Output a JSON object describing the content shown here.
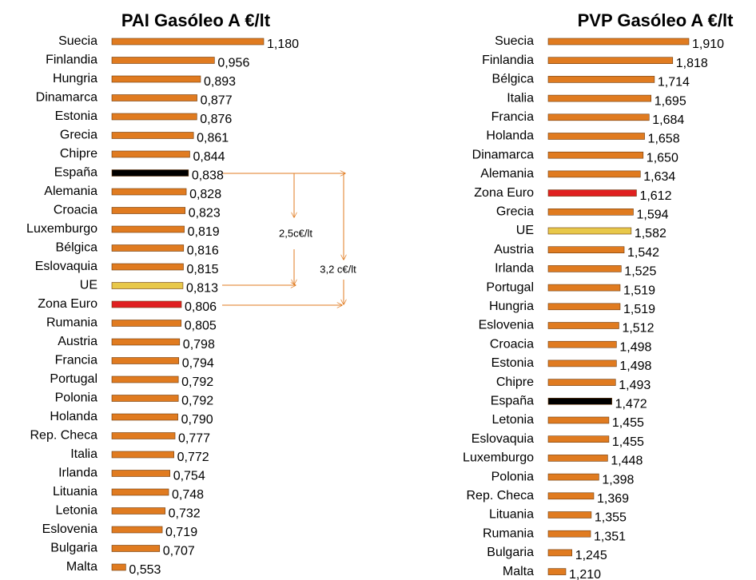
{
  "chart_data": [
    {
      "type": "bar",
      "orientation": "horizontal",
      "title": "PAI Gasóleo A €/lt",
      "categories": [
        "Suecia",
        "Finlandia",
        "Hungria",
        "Dinamarca",
        "Estonia",
        "Grecia",
        "Chipre",
        "España",
        "Alemania",
        "Croacia",
        "Luxemburgo",
        "Bélgica",
        "Eslovaquia",
        "UE",
        "Zona Euro",
        "Rumania",
        "Austria",
        "Francia",
        "Portugal",
        "Polonia",
        "Holanda",
        "Rep. Checa",
        "Italia",
        "Irlanda",
        "Lituania",
        "Letonia",
        "Eslovenia",
        "Bulgaria",
        "Malta"
      ],
      "values": [
        1.18,
        0.956,
        0.893,
        0.877,
        0.876,
        0.861,
        0.844,
        0.838,
        0.828,
        0.823,
        0.819,
        0.816,
        0.815,
        0.813,
        0.806,
        0.805,
        0.798,
        0.794,
        0.792,
        0.792,
        0.79,
        0.777,
        0.772,
        0.754,
        0.748,
        0.732,
        0.719,
        0.707,
        0.553
      ],
      "value_labels": [
        "1,180",
        "0,956",
        "0,893",
        "0,877",
        "0,876",
        "0,861",
        "0,844",
        "0,838",
        "0,828",
        "0,823",
        "0,819",
        "0,816",
        "0,815",
        "0,813",
        "0,806",
        "0,805",
        "0,798",
        "0,794",
        "0,792",
        "0,792",
        "0,790",
        "0,777",
        "0,772",
        "0,754",
        "0,748",
        "0,732",
        "0,719",
        "0,707",
        "0,553"
      ],
      "colors": [
        "#e07b20",
        "#e07b20",
        "#e07b20",
        "#e07b20",
        "#e07b20",
        "#e07b20",
        "#e07b20",
        "#000000",
        "#e07b20",
        "#e07b20",
        "#e07b20",
        "#e07b20",
        "#e07b20",
        "#e8c84a",
        "#e02020",
        "#e07b20",
        "#e07b20",
        "#e07b20",
        "#e07b20",
        "#e07b20",
        "#e07b20",
        "#e07b20",
        "#e07b20",
        "#e07b20",
        "#e07b20",
        "#e07b20",
        "#e07b20",
        "#e07b20",
        "#e07b20"
      ],
      "xlim": [
        0.49,
        1.18
      ],
      "annotations": [
        "2,5c€/lt",
        "3,2 c€/lt"
      ]
    },
    {
      "type": "bar",
      "orientation": "horizontal",
      "title": "PVP Gasóleo A €/lt",
      "categories": [
        "Suecia",
        "Finlandia",
        "Bélgica",
        "Italia",
        "Francia",
        "Holanda",
        "Dinamarca",
        "Alemania",
        "Zona Euro",
        "Grecia",
        "UE",
        "Austria",
        "Irlanda",
        "Portugal",
        "Hungria",
        "Eslovenia",
        "Croacia",
        "Estonia",
        "Chipre",
        "España",
        "Letonia",
        "Eslovaquia",
        "Luxemburgo",
        "Polonia",
        "Rep. Checa",
        "Lituania",
        "Rumania",
        "Bulgaria",
        "Malta"
      ],
      "values": [
        1.91,
        1.818,
        1.714,
        1.695,
        1.684,
        1.658,
        1.65,
        1.634,
        1.612,
        1.594,
        1.582,
        1.542,
        1.525,
        1.519,
        1.519,
        1.512,
        1.498,
        1.498,
        1.493,
        1.472,
        1.455,
        1.455,
        1.448,
        1.398,
        1.369,
        1.355,
        1.351,
        1.245,
        1.21
      ],
      "value_labels": [
        "1,910",
        "1,818",
        "1,714",
        "1,695",
        "1,684",
        "1,658",
        "1,650",
        "1,634",
        "1,612",
        "1,594",
        "1,582",
        "1,542",
        "1,525",
        "1,519",
        "1,519",
        "1,512",
        "1,498",
        "1,498",
        "1,493",
        "1,472",
        "1,455",
        "1,455",
        "1,448",
        "1,398",
        "1,369",
        "1,355",
        "1,351",
        "1,245",
        "1,210"
      ],
      "colors": [
        "#e07b20",
        "#e07b20",
        "#e07b20",
        "#e07b20",
        "#e07b20",
        "#e07b20",
        "#e07b20",
        "#e07b20",
        "#e02020",
        "#e07b20",
        "#e8c84a",
        "#e07b20",
        "#e07b20",
        "#e07b20",
        "#e07b20",
        "#e07b20",
        "#e07b20",
        "#e07b20",
        "#e07b20",
        "#000000",
        "#e07b20",
        "#e07b20",
        "#e07b20",
        "#e07b20",
        "#e07b20",
        "#e07b20",
        "#e07b20",
        "#e07b20",
        "#e07b20"
      ],
      "xlim": [
        1.11,
        1.91
      ]
    }
  ]
}
